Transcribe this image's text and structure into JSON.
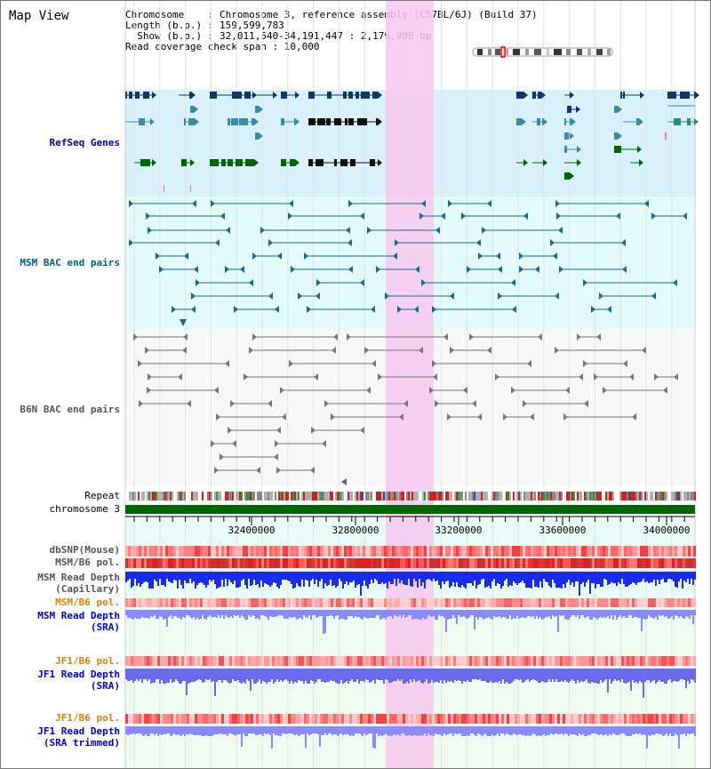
{
  "header": {
    "title": "Map View",
    "info_lines": [
      "Chromosome    : Chromosome 3, reference assembly (C57BL/6J) (Build 37)",
      "Length (b.p.) : 159,599,783",
      "  Show (b.p.) : 32,011,540-34,191,447 : 2,179,908 bp",
      "Read coverage check span : 10,000"
    ]
  },
  "tracks": {
    "refseq": "RefSeq Genes",
    "msm_bac": "MSM BAC end pairs",
    "b6n_bac": "B6N BAC end pairs",
    "repeat": "Repeat",
    "chromosome": "chromosome 3",
    "dbsnp": "dbSNP(Mouse)",
    "msm_b6_pol": "MSM/B6 pol.",
    "msm_depth_cap_1": "MSM Read Depth",
    "msm_depth_cap_2": "(Capillary)",
    "msm_b6_pol_2": "MSM/B6 pol.",
    "msm_depth_sra_1": "MSM Read Depth",
    "msm_depth_sra_2": "(SRA)",
    "jf1_pol_1": "JF1/B6 pol.",
    "jf1_depth_sra_1": "JF1 Read Depth",
    "jf1_depth_sra_2": "(SRA)",
    "jf1_pol_2": "JF1/B6 pol.",
    "jf1_depth_trim_1": "JF1 Read Depth",
    "jf1_depth_trim_2": "(SRA trimmed)"
  },
  "axis": {
    "ticks": [
      "32400000",
      "32800000",
      "33200000",
      "33600000",
      "34000000"
    ]
  },
  "colors": {
    "refseq_label": "#0000aa",
    "msm_label": "#006080",
    "b6n_label": "#555555",
    "orange_label": "#e08000",
    "blue_label": "#0000cc",
    "gene_dark": "#0a3a6a",
    "gene_mid": "#3a8aaa",
    "gene_green": "#006600",
    "highlight": "#f7c8ef",
    "chrom_bar": "#006600"
  }
}
